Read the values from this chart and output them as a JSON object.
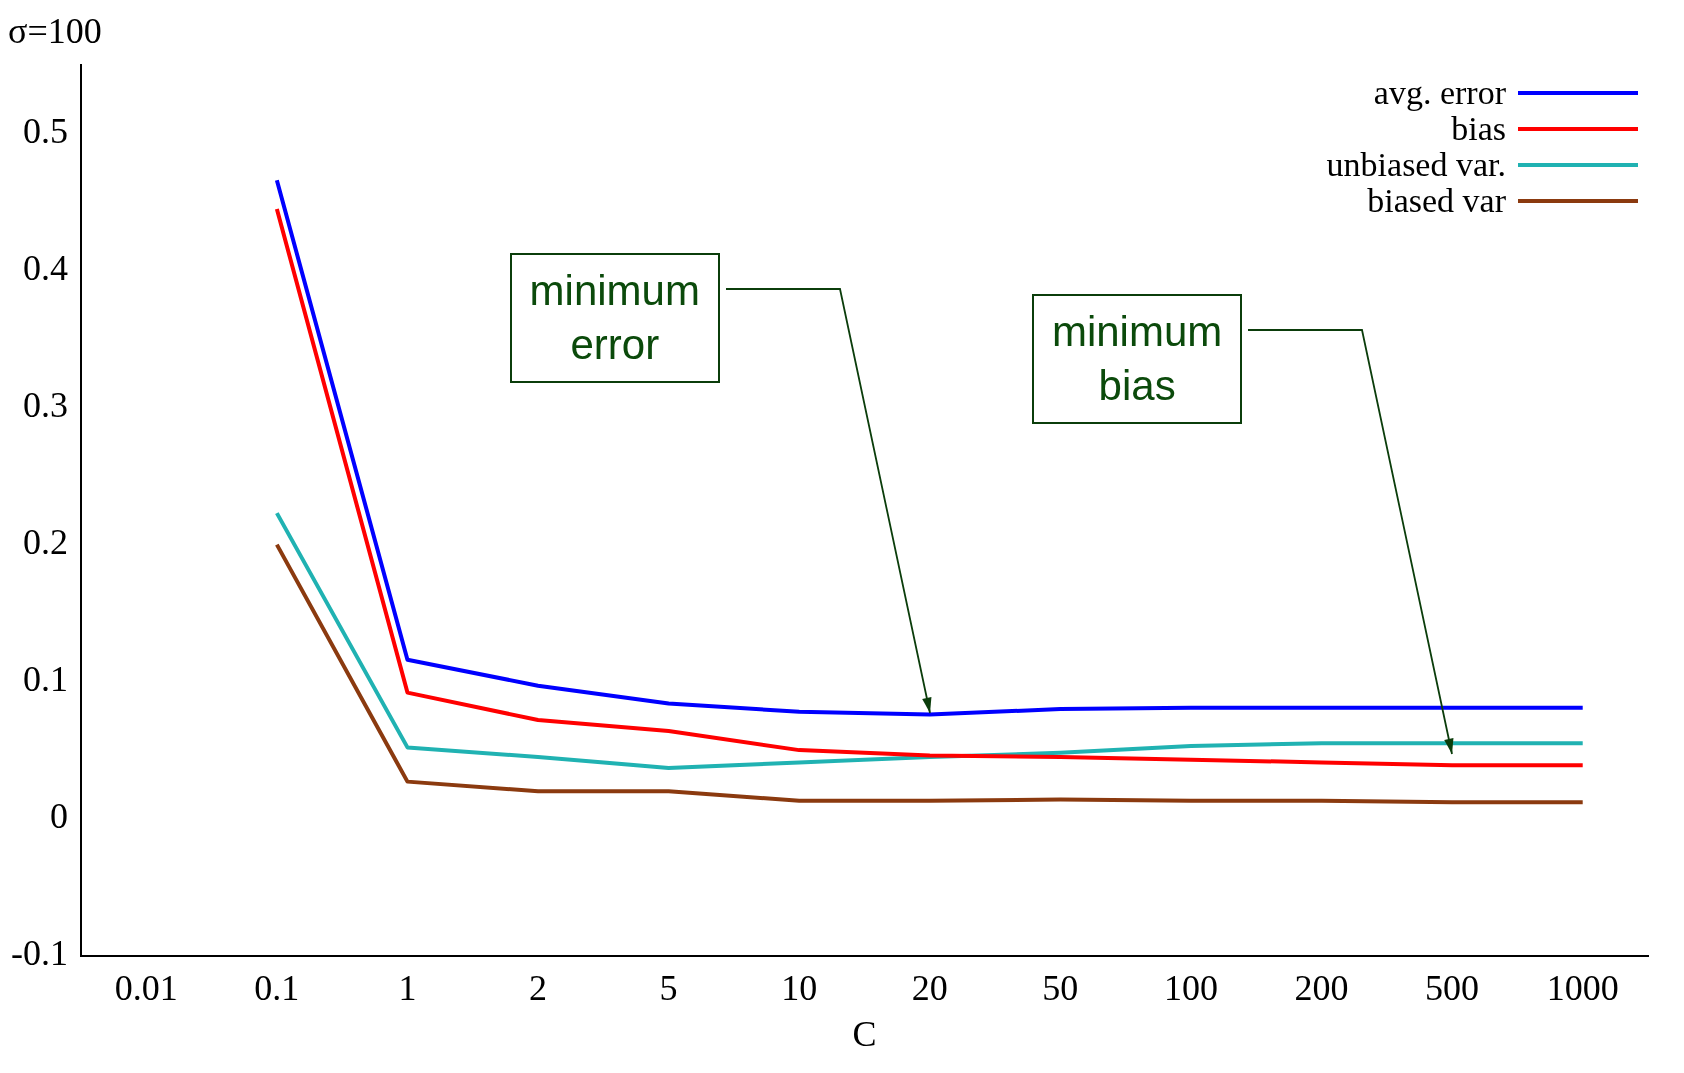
{
  "chart_data": {
    "type": "line",
    "title": "σ=100",
    "xlabel": "C",
    "categories": [
      "0.01",
      "0.1",
      "1",
      "2",
      "5",
      "10",
      "20",
      "50",
      "100",
      "200",
      "500",
      "1000"
    ],
    "series": [
      {
        "name": "avg. error",
        "color": "#0000ff",
        "values": [
          null,
          0.466,
          0.116,
          0.097,
          0.084,
          0.078,
          0.076,
          0.08,
          0.081,
          0.081,
          0.081,
          0.081
        ]
      },
      {
        "name": "bias",
        "color": "#ff0000",
        "values": [
          null,
          0.445,
          0.092,
          0.072,
          0.064,
          0.05,
          0.046,
          0.045,
          0.043,
          0.041,
          0.039,
          0.039
        ]
      },
      {
        "name": "unbiased var.",
        "color": "#20b2b2",
        "values": [
          null,
          0.223,
          0.052,
          0.045,
          0.037,
          0.041,
          0.045,
          0.048,
          0.053,
          0.055,
          0.055,
          0.055
        ]
      },
      {
        "name": "biased var",
        "color": "#8b3a0f",
        "values": [
          null,
          0.2,
          0.027,
          0.02,
          0.02,
          0.013,
          0.013,
          0.014,
          0.013,
          0.013,
          0.012,
          0.012
        ]
      }
    ],
    "ylim": [
      -0.1,
      0.55
    ],
    "yticks": [
      -0.1,
      0,
      0.1,
      0.2,
      0.3,
      0.4,
      0.5
    ],
    "annotations": [
      {
        "text": "minimum error",
        "x": "20",
        "y": 0.077
      },
      {
        "text": "minimum bias",
        "x": "500",
        "y": 0.047
      }
    ],
    "legend": "top right",
    "grid": false,
    "marker": "none",
    "line_style": "solid"
  }
}
